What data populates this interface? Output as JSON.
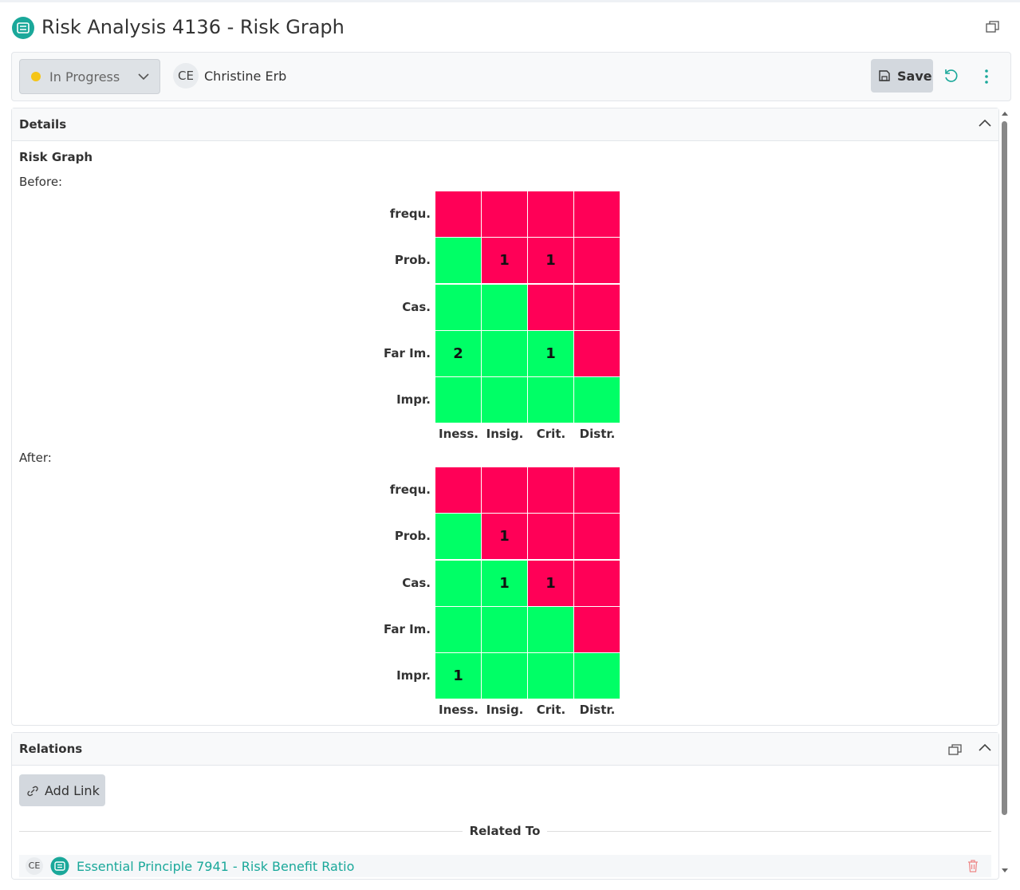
{
  "header": {
    "title": "Risk Analysis 4136 - Risk Graph"
  },
  "toolbar": {
    "status": "In Progress",
    "assignee_initials": "CE",
    "assignee": "Christine Erb",
    "save": "Save"
  },
  "details": {
    "title": "Details",
    "section": "Risk Graph",
    "graphs": [
      {
        "label": "Before:",
        "rows": [
          "frequ.",
          "Prob.",
          "Cas.",
          "Far Im.",
          "Impr."
        ],
        "columns": [
          "Iness.",
          "Insig.",
          "Crit.",
          "Distr."
        ],
        "cells": [
          [
            {
              "color": "#ff0057",
              "count": null
            },
            {
              "color": "#ff0057",
              "count": null
            },
            {
              "color": "#ff0057",
              "count": null
            },
            {
              "color": "#ff0057",
              "count": null
            }
          ],
          [
            {
              "color": "#00ff66",
              "count": null
            },
            {
              "color": "#ff0057",
              "count": 1
            },
            {
              "color": "#ff0057",
              "count": 1
            },
            {
              "color": "#ff0057",
              "count": null
            }
          ],
          [
            {
              "color": "#00ff66",
              "count": null
            },
            {
              "color": "#00ff66",
              "count": null
            },
            {
              "color": "#ff0057",
              "count": null
            },
            {
              "color": "#ff0057",
              "count": null
            }
          ],
          [
            {
              "color": "#00ff66",
              "count": 2
            },
            {
              "color": "#00ff66",
              "count": null
            },
            {
              "color": "#00ff66",
              "count": 1
            },
            {
              "color": "#ff0057",
              "count": null
            }
          ],
          [
            {
              "color": "#00ff66",
              "count": null
            },
            {
              "color": "#00ff66",
              "count": null
            },
            {
              "color": "#00ff66",
              "count": null
            },
            {
              "color": "#00ff66",
              "count": null
            }
          ]
        ]
      },
      {
        "label": "After:",
        "rows": [
          "frequ.",
          "Prob.",
          "Cas.",
          "Far Im.",
          "Impr."
        ],
        "columns": [
          "Iness.",
          "Insig.",
          "Crit.",
          "Distr."
        ],
        "cells": [
          [
            {
              "color": "#ff0057",
              "count": null
            },
            {
              "color": "#ff0057",
              "count": null
            },
            {
              "color": "#ff0057",
              "count": null
            },
            {
              "color": "#ff0057",
              "count": null
            }
          ],
          [
            {
              "color": "#00ff66",
              "count": null
            },
            {
              "color": "#ff0057",
              "count": 1
            },
            {
              "color": "#ff0057",
              "count": null
            },
            {
              "color": "#ff0057",
              "count": null
            }
          ],
          [
            {
              "color": "#00ff66",
              "count": null
            },
            {
              "color": "#00ff66",
              "count": 1
            },
            {
              "color": "#ff0057",
              "count": 1
            },
            {
              "color": "#ff0057",
              "count": null
            }
          ],
          [
            {
              "color": "#00ff66",
              "count": null
            },
            {
              "color": "#00ff66",
              "count": null
            },
            {
              "color": "#00ff66",
              "count": null
            },
            {
              "color": "#ff0057",
              "count": null
            }
          ],
          [
            {
              "color": "#00ff66",
              "count": 1
            },
            {
              "color": "#00ff66",
              "count": null
            },
            {
              "color": "#00ff66",
              "count": null
            },
            {
              "color": "#00ff66",
              "count": null
            }
          ]
        ]
      }
    ]
  },
  "relations": {
    "title": "Relations",
    "add_link": "Add Link",
    "group": "Related To",
    "items": [
      {
        "initials": "CE",
        "title": "Essential Principle 7941 - Risk Benefit Ratio"
      }
    ]
  }
}
